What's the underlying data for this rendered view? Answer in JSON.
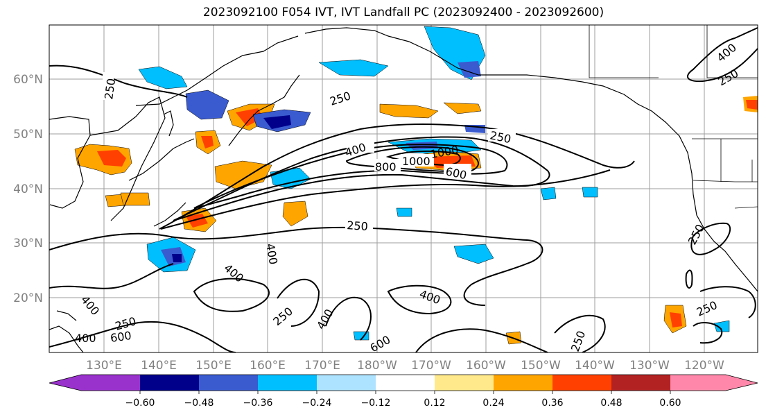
{
  "title": "2023092100 F054 IVT, IVT Landfall PC (2023092400 - 2023092600)",
  "map": {
    "lat_labels": [
      "60°N",
      "50°N",
      "40°N",
      "30°N",
      "20°N"
    ],
    "lon_labels": [
      "130°E",
      "140°E",
      "150°E",
      "160°E",
      "170°E",
      "180°W",
      "170°W",
      "160°W",
      "150°W",
      "140°W",
      "130°W",
      "120°W"
    ],
    "contour_labels": [
      "250",
      "250",
      "250",
      "250",
      "250",
      "250",
      "250",
      "250",
      "250",
      "250",
      "400",
      "400",
      "400",
      "400",
      "400",
      "400",
      "400",
      "400",
      "600",
      "600",
      "600",
      "800",
      "1000",
      "1000"
    ]
  },
  "colorbar": {
    "ticks": [
      "−0.60",
      "−0.48",
      "−0.36",
      "−0.24",
      "−0.12",
      "0.12",
      "0.24",
      "0.36",
      "0.48",
      "0.60"
    ],
    "colors": [
      "#9932CC",
      "#00008B",
      "#3A5BD0",
      "#00BFFF",
      "#ADE3FF",
      "#FFFFFF",
      "#FFE98A",
      "#FFA500",
      "#FF4000",
      "#B22222",
      "#FF88AA",
      "#FF88AA"
    ]
  }
}
